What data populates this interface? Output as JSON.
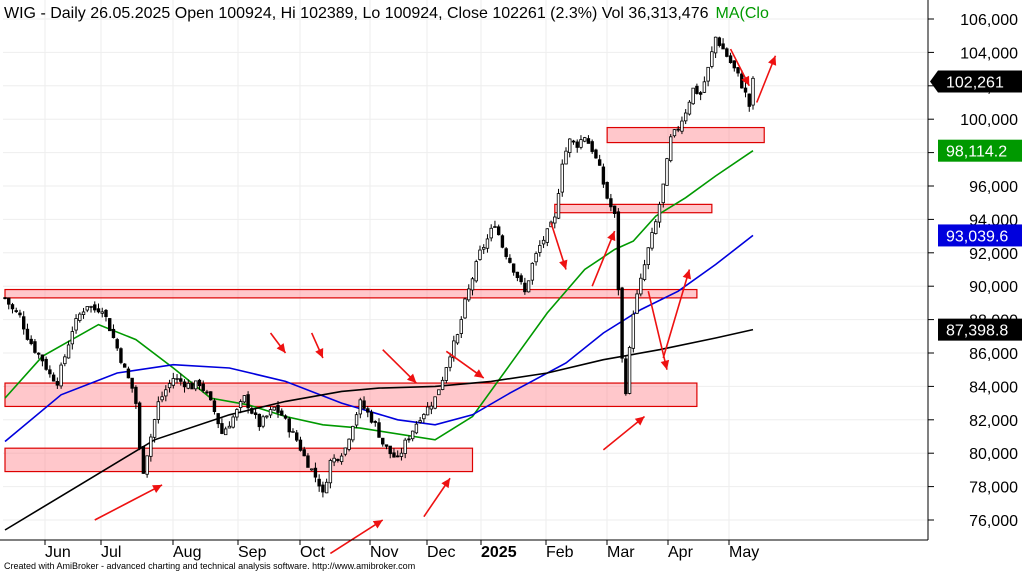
{
  "chart_data": {
    "type": "candlestick",
    "header": {
      "text": "WIG - Daily 26.05.2025 Open 100924, Hi 102389, Lo 100924, Close 102261 (2.3%) Vol 36,313,476",
      "ma_text": "MA(Clo",
      "ma_color": "#009900"
    },
    "y_axis": {
      "range": [
        74000,
        107000
      ],
      "ticks": [
        "106,000",
        "104,000",
        "102,000",
        "100,000",
        "98,000",
        "96,000",
        "94,000",
        "92,000",
        "90,000",
        "88,000",
        "86,000",
        "84,000",
        "82,000",
        "80,000",
        "78,000",
        "76,000"
      ]
    },
    "x_axis": {
      "labels": [
        {
          "label": "Jun",
          "bold": false
        },
        {
          "label": "Jul",
          "bold": false
        },
        {
          "label": "Aug",
          "bold": false
        },
        {
          "label": "Sep",
          "bold": false
        },
        {
          "label": "Oct",
          "bold": false
        },
        {
          "label": "Nov",
          "bold": false
        },
        {
          "label": "Dec",
          "bold": false
        },
        {
          "label": "2025",
          "bold": true
        },
        {
          "label": "Feb",
          "bold": false
        },
        {
          "label": "Mar",
          "bold": false
        },
        {
          "label": "Apr",
          "bold": false
        },
        {
          "label": "May",
          "bold": false
        }
      ]
    },
    "last_value_tags": [
      {
        "label": "102,261",
        "value": 102261,
        "color": "#000000"
      },
      {
        "label": "98,114.2",
        "value": 98114.2,
        "color": "#009900"
      },
      {
        "label": "93,039.6",
        "value": 93039.6,
        "color": "#0000dd"
      },
      {
        "label": "87,398.8",
        "value": 87398.8,
        "color": "#000000"
      }
    ],
    "price_path": [
      [
        0,
        89300
      ],
      [
        2,
        88600
      ],
      [
        4,
        88200
      ],
      [
        6,
        87000
      ],
      [
        8,
        86200
      ],
      [
        10,
        85600
      ],
      [
        12,
        84700
      ],
      [
        14,
        84300
      ],
      [
        16,
        85800
      ],
      [
        18,
        87400
      ],
      [
        20,
        88300
      ],
      [
        22,
        88900
      ],
      [
        24,
        88600
      ],
      [
        26,
        88700
      ],
      [
        28,
        87500
      ],
      [
        30,
        86300
      ],
      [
        32,
        85000
      ],
      [
        34,
        83900
      ],
      [
        35,
        83000
      ],
      [
        36,
        80200
      ],
      [
        37,
        79000
      ],
      [
        39,
        81000
      ],
      [
        41,
        83000
      ],
      [
        43,
        83800
      ],
      [
        45,
        84500
      ],
      [
        47,
        84300
      ],
      [
        50,
        84000
      ],
      [
        52,
        84200
      ],
      [
        54,
        83500
      ],
      [
        56,
        82500
      ],
      [
        58,
        81200
      ],
      [
        60,
        81800
      ],
      [
        62,
        82500
      ],
      [
        64,
        83300
      ],
      [
        66,
        82500
      ],
      [
        68,
        81700
      ],
      [
        70,
        82200
      ],
      [
        72,
        82700
      ],
      [
        74,
        82300
      ],
      [
        76,
        81500
      ],
      [
        78,
        80800
      ],
      [
        80,
        79800
      ],
      [
        82,
        79000
      ],
      [
        84,
        78200
      ],
      [
        85,
        77500
      ],
      [
        87,
        79500
      ],
      [
        89,
        79800
      ],
      [
        91,
        80300
      ],
      [
        93,
        81800
      ],
      [
        95,
        83000
      ],
      [
        97,
        82400
      ],
      [
        99,
        81700
      ],
      [
        101,
        80600
      ],
      [
        103,
        80000
      ],
      [
        105,
        79600
      ],
      [
        107,
        80600
      ],
      [
        109,
        81400
      ],
      [
        111,
        82200
      ],
      [
        113,
        82700
      ],
      [
        115,
        83300
      ],
      [
        117,
        84500
      ],
      [
        119,
        86000
      ],
      [
        121,
        87000
      ],
      [
        123,
        89000
      ],
      [
        125,
        90500
      ],
      [
        127,
        92000
      ],
      [
        129,
        92800
      ],
      [
        131,
        93800
      ],
      [
        133,
        92400
      ],
      [
        135,
        91500
      ],
      [
        137,
        90600
      ],
      [
        139,
        89600
      ],
      [
        141,
        91300
      ],
      [
        143,
        92400
      ],
      [
        145,
        93200
      ],
      [
        147,
        94000
      ],
      [
        149,
        97500
      ],
      [
        151,
        98700
      ],
      [
        153,
        98500
      ],
      [
        155,
        99000
      ],
      [
        157,
        98200
      ],
      [
        159,
        97000
      ],
      [
        161,
        95300
      ],
      [
        163,
        94200
      ],
      [
        165,
        85600
      ],
      [
        166,
        83800
      ],
      [
        168,
        88500
      ],
      [
        170,
        90300
      ],
      [
        172,
        92200
      ],
      [
        174,
        93800
      ],
      [
        176,
        96000
      ],
      [
        178,
        98800
      ],
      [
        180,
        99500
      ],
      [
        182,
        100500
      ],
      [
        184,
        101800
      ],
      [
        186,
        101500
      ],
      [
        188,
        103000
      ],
      [
        190,
        104900
      ],
      [
        192,
        104200
      ],
      [
        194,
        103400
      ],
      [
        196,
        102600
      ],
      [
        198,
        101500
      ],
      [
        199,
        100800
      ],
      [
        200,
        102261
      ]
    ],
    "sma_series": [
      {
        "name": "",
        "color": "#009900",
        "points": [
          [
            0,
            83300
          ],
          [
            10,
            85800
          ],
          [
            25,
            87700
          ],
          [
            35,
            86800
          ],
          [
            45,
            85100
          ],
          [
            55,
            83300
          ],
          [
            65,
            82900
          ],
          [
            75,
            82200
          ],
          [
            85,
            81700
          ],
          [
            95,
            81500
          ],
          [
            115,
            80800
          ],
          [
            125,
            82200
          ],
          [
            135,
            85300
          ],
          [
            145,
            88400
          ],
          [
            155,
            91000
          ],
          [
            163,
            92200
          ],
          [
            168,
            92700
          ],
          [
            174,
            94200
          ],
          [
            182,
            95300
          ],
          [
            190,
            96600
          ],
          [
            200,
            98114
          ]
        ]
      },
      {
        "name": "",
        "color": "#0000dd",
        "points": [
          [
            0,
            80700
          ],
          [
            15,
            83500
          ],
          [
            30,
            84800
          ],
          [
            45,
            85300
          ],
          [
            60,
            85100
          ],
          [
            75,
            84300
          ],
          [
            90,
            83000
          ],
          [
            105,
            82000
          ],
          [
            115,
            81700
          ],
          [
            125,
            82300
          ],
          [
            135,
            83600
          ],
          [
            150,
            85400
          ],
          [
            160,
            87200
          ],
          [
            170,
            88600
          ],
          [
            180,
            89700
          ],
          [
            190,
            91300
          ],
          [
            200,
            93040
          ]
        ]
      },
      {
        "name": "",
        "color": "#000000",
        "points": [
          [
            0,
            75400
          ],
          [
            20,
            78100
          ],
          [
            40,
            80800
          ],
          [
            60,
            82300
          ],
          [
            75,
            83100
          ],
          [
            90,
            83700
          ],
          [
            100,
            83900
          ],
          [
            115,
            84000
          ],
          [
            130,
            84300
          ],
          [
            145,
            84800
          ],
          [
            160,
            85600
          ],
          [
            175,
            86200
          ],
          [
            190,
            86900
          ],
          [
            200,
            87399
          ]
        ]
      }
    ],
    "zones": [
      {
        "x1": 0,
        "x2": 185,
        "y_low": 89300,
        "y_high": 89800
      },
      {
        "x1": 0,
        "x2": 185,
        "y_low": 82800,
        "y_high": 84200
      },
      {
        "x1": 0,
        "x2": 125,
        "y_low": 78900,
        "y_high": 80300
      },
      {
        "x1": 147,
        "x2": 189,
        "y_low": 94400,
        "y_high": 94900
      },
      {
        "x1": 161,
        "x2": 203,
        "y_low": 98600,
        "y_high": 99500
      }
    ],
    "arrows": [
      [
        [
          24,
          76000
        ],
        [
          42,
          78100
        ]
      ],
      [
        [
          87,
          74000
        ],
        [
          101,
          76000
        ]
      ],
      [
        [
          112,
          76200
        ],
        [
          119,
          78500
        ]
      ],
      [
        [
          160,
          80200
        ],
        [
          171,
          82200
        ]
      ],
      [
        [
          71,
          87200
        ],
        [
          75,
          86000
        ]
      ],
      [
        [
          82,
          87200
        ],
        [
          85,
          85700
        ]
      ],
      [
        [
          101,
          86200
        ],
        [
          110,
          84200
        ]
      ],
      [
        [
          118,
          86100
        ],
        [
          128,
          84500
        ]
      ],
      [
        [
          146,
          93800
        ],
        [
          150,
          91000
        ]
      ],
      [
        [
          157,
          90000
        ],
        [
          163,
          93300
        ]
      ],
      [
        [
          172,
          89700
        ],
        [
          177,
          85000
        ]
      ],
      [
        [
          176,
          85700
        ],
        [
          183,
          91000
        ]
      ],
      [
        [
          194,
          104200
        ],
        [
          199,
          102000
        ]
      ],
      [
        [
          201,
          101000
        ],
        [
          206,
          103800
        ]
      ]
    ],
    "credit": "Created with AmiBroker - advanced charting and technical analysis software. http://www.amibroker.com"
  }
}
